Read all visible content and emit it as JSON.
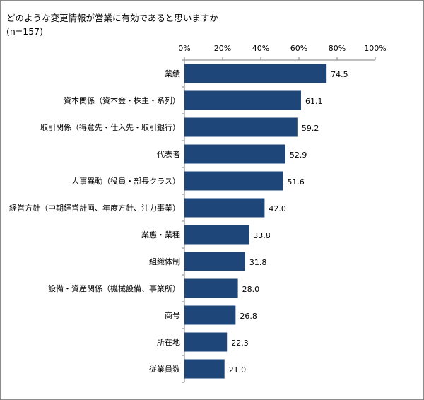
{
  "chart_data": {
    "type": "bar",
    "orientation": "horizontal",
    "title": "どのような変更情報が営業に有効であると思いますか",
    "subtitle": "(n=157)",
    "categories": [
      "業績",
      "資本関係（資本金・株主・系列）",
      "取引関係（得意先・仕入先・取引銀行）",
      "代表者",
      "人事異動（役員・部長クラス）",
      "経営方針（中期経営計画、年度方針、注力事業）",
      "業態・業種",
      "組織体制",
      "設備・資産関係（機械設備、事業所）",
      "商号",
      "所在地",
      "従業員数"
    ],
    "values": [
      74.5,
      61.1,
      59.2,
      52.9,
      51.6,
      42.0,
      33.8,
      31.8,
      28.0,
      26.8,
      22.3,
      21.0
    ],
    "value_labels": [
      "74.5",
      "61.1",
      "59.2",
      "52.9",
      "51.6",
      "42.0",
      "33.8",
      "31.8",
      "28.0",
      "26.8",
      "22.3",
      "21.0"
    ],
    "xlim": [
      0,
      100
    ],
    "xticks": [
      "0%",
      "20%",
      "40%",
      "60%",
      "80%",
      "100%"
    ],
    "xtick_values": [
      0,
      20,
      40,
      60,
      80,
      100
    ],
    "tick_position": "top",
    "grid": false,
    "bar_color": "#1f4678"
  }
}
